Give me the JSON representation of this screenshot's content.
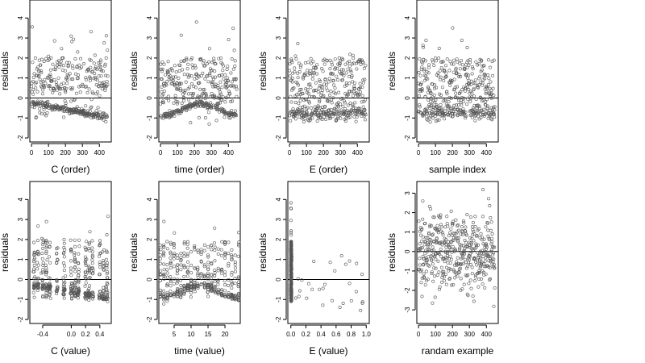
{
  "style": {
    "point_color": "#555555",
    "line_color": "#000000",
    "background": "#ffffff"
  },
  "panels": [
    {
      "xlabel": "C (order)",
      "ylabel": "residuals",
      "pattern": "band_neg_decline",
      "xlim": [
        -10,
        470
      ],
      "ylim": [
        -2.2,
        4.9
      ],
      "xticks": [
        0,
        100,
        200,
        300,
        400
      ],
      "xtick_labels": [
        "0",
        "100",
        "200",
        "300",
        "400"
      ],
      "yticks": [
        -2,
        -1,
        0,
        1,
        2,
        3,
        4
      ],
      "ytick_labels": [
        "-2",
        "-1",
        "0",
        "1",
        "2",
        "3",
        "4"
      ]
    },
    {
      "xlabel": "time (order)",
      "ylabel": "residuals",
      "pattern": "band_neg_wave",
      "xlim": [
        -10,
        470
      ],
      "ylim": [
        -2.2,
        4.9
      ],
      "xticks": [
        0,
        100,
        200,
        300,
        400
      ],
      "xtick_labels": [
        "0",
        "100",
        "200",
        "300",
        "400"
      ],
      "yticks": [
        -2,
        -1,
        0,
        1,
        2,
        3,
        4
      ],
      "ytick_labels": [
        "-2",
        "-1",
        "0",
        "1",
        "2",
        "3",
        "4"
      ]
    },
    {
      "xlabel": "E (order)",
      "ylabel": "residuals",
      "pattern": "spread_mixed",
      "xlim": [
        -10,
        470
      ],
      "ylim": [
        -2.2,
        4.9
      ],
      "xticks": [
        0,
        100,
        200,
        300,
        400
      ],
      "xtick_labels": [
        "0",
        "100",
        "200",
        "300",
        "400"
      ],
      "yticks": [
        -2,
        -1,
        0,
        1,
        2,
        3,
        4
      ],
      "ytick_labels": [
        "-2",
        "-1",
        "0",
        "1",
        "2",
        "3",
        "4"
      ]
    },
    {
      "xlabel": "sample index",
      "ylabel": "residuals",
      "pattern": "spread_mixed",
      "xlim": [
        -10,
        470
      ],
      "ylim": [
        -2.2,
        4.9
      ],
      "xticks": [
        0,
        100,
        200,
        300,
        400
      ],
      "xtick_labels": [
        "0",
        "100",
        "200",
        "300",
        "400"
      ],
      "yticks": [
        -2,
        -1,
        0,
        1,
        2,
        3,
        4
      ],
      "ytick_labels": [
        "-2",
        "-1",
        "0",
        "1",
        "2",
        "3",
        "4"
      ]
    },
    {
      "xlabel": "C (value)",
      "ylabel": "residuals",
      "pattern": "clusters_c",
      "xlim": [
        -0.58,
        0.56
      ],
      "ylim": [
        -2.2,
        4.9
      ],
      "xticks": [
        -0.4,
        0.0,
        0.2,
        0.4
      ],
      "xtick_labels": [
        "-0.4",
        "0.0",
        "0.2",
        "0.4"
      ],
      "yticks": [
        -2,
        -1,
        0,
        1,
        2,
        3,
        4
      ],
      "ytick_labels": [
        "-2",
        "-1",
        "0",
        "1",
        "2",
        "3",
        "4"
      ]
    },
    {
      "xlabel": "time (value)",
      "ylabel": "residuals",
      "pattern": "clusters_time",
      "xlim": [
        0.5,
        24.5
      ],
      "ylim": [
        -2.2,
        4.9
      ],
      "xticks": [
        5,
        10,
        15,
        20
      ],
      "xtick_labels": [
        "5",
        "10",
        "15",
        "20"
      ],
      "yticks": [
        -2,
        -1,
        0,
        1,
        2,
        3,
        4
      ],
      "ytick_labels": [
        "-2",
        "-1",
        "0",
        "1",
        "2",
        "3",
        "4"
      ]
    },
    {
      "xlabel": "E (value)",
      "ylabel": "residuals",
      "pattern": "e_value",
      "xlim": [
        -0.04,
        1.04
      ],
      "ylim": [
        -2.2,
        4.9
      ],
      "xticks": [
        0.0,
        0.2,
        0.4,
        0.6,
        0.8,
        1.0
      ],
      "xtick_labels": [
        "0.0",
        "0.2",
        "0.4",
        "0.6",
        "0.8",
        "1.0"
      ],
      "yticks": [
        -2,
        -1,
        0,
        1,
        2,
        3,
        4
      ],
      "ytick_labels": [
        "-2",
        "-1",
        "0",
        "1",
        "2",
        "3",
        "4"
      ]
    },
    {
      "xlabel": "randam example",
      "ylabel": "residuals",
      "pattern": "random_normal",
      "xlim": [
        -10,
        470
      ],
      "ylim": [
        -3.7,
        3.6
      ],
      "xticks": [
        0,
        100,
        200,
        300,
        400
      ],
      "xtick_labels": [
        "0",
        "100",
        "200",
        "300",
        "400"
      ],
      "yticks": [
        -3,
        -2,
        -1,
        0,
        1,
        2,
        3
      ],
      "ytick_labels": [
        "-3",
        "-2",
        "-1",
        "0",
        "1",
        "2",
        "3"
      ]
    }
  ],
  "chart_data": [
    {
      "type": "scatter",
      "xlabel": "C (order)",
      "ylabel": "residuals",
      "xlim": [
        -10,
        470
      ],
      "ylim": [
        -2.2,
        4.9
      ],
      "grid": false,
      "reference_line_y": 0
    },
    {
      "type": "scatter",
      "xlabel": "time (order)",
      "ylabel": "residuals",
      "xlim": [
        -10,
        470
      ],
      "ylim": [
        -2.2,
        4.9
      ],
      "grid": false,
      "reference_line_y": 0
    },
    {
      "type": "scatter",
      "xlabel": "E (order)",
      "ylabel": "residuals",
      "xlim": [
        -10,
        470
      ],
      "ylim": [
        -2.2,
        4.9
      ],
      "grid": false,
      "reference_line_y": 0
    },
    {
      "type": "scatter",
      "xlabel": "sample index",
      "ylabel": "residuals",
      "xlim": [
        -10,
        470
      ],
      "ylim": [
        -2.2,
        4.9
      ],
      "grid": false,
      "reference_line_y": 0
    },
    {
      "type": "scatter",
      "xlabel": "C (value)",
      "ylabel": "residuals",
      "xlim": [
        -0.58,
        0.56
      ],
      "ylim": [
        -2.2,
        4.9
      ],
      "grid": false,
      "reference_line_y": 0
    },
    {
      "type": "scatter",
      "xlabel": "time (value)",
      "ylabel": "residuals",
      "xlim": [
        0.5,
        24.5
      ],
      "ylim": [
        -2.2,
        4.9
      ],
      "grid": false,
      "reference_line_y": 0
    },
    {
      "type": "scatter",
      "xlabel": "E (value)",
      "ylabel": "residuals",
      "xlim": [
        -0.04,
        1.04
      ],
      "ylim": [
        -2.2,
        4.9
      ],
      "grid": false,
      "reference_line_y": 0
    },
    {
      "type": "scatter",
      "xlabel": "randam example",
      "ylabel": "residuals",
      "xlim": [
        -10,
        470
      ],
      "ylim": [
        -3.7,
        3.6
      ],
      "grid": false,
      "reference_line_y": 0
    }
  ]
}
